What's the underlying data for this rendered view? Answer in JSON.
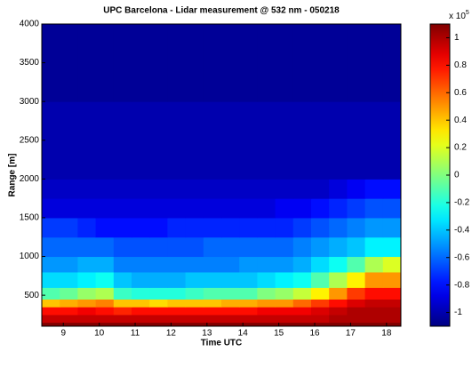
{
  "chart_data": {
    "type": "heatmap",
    "title": "UPC Barcelona - Lidar measurement @ 532 nm - 050218",
    "x_label": "Time UTC",
    "y_label": "Range [m]",
    "xlim": [
      8.4,
      18.4
    ],
    "xticks": [
      9,
      10,
      11,
      12,
      13,
      14,
      15,
      16,
      17,
      18
    ],
    "ylim": [
      100,
      4000
    ],
    "yticks": [
      500,
      1000,
      1500,
      2000,
      2500,
      3000,
      3500,
      4000
    ],
    "xbins": [
      8.4,
      8.9,
      9.4,
      9.9,
      10.4,
      10.9,
      11.4,
      11.9,
      12.4,
      12.9,
      13.4,
      13.9,
      14.4,
      14.9,
      15.4,
      15.9,
      16.4,
      16.9,
      17.4,
      17.9,
      18.4
    ],
    "ybins": [
      150,
      250,
      350,
      450,
      600,
      800,
      1000,
      1250,
      1500,
      1750,
      2000,
      3000,
      4000
    ],
    "z": [
      [
        0.95,
        0.95,
        0.95,
        0.95,
        0.95,
        0.95,
        0.95,
        0.95,
        0.95,
        0.95,
        0.95,
        0.95,
        0.95,
        0.95,
        0.95,
        0.95,
        1.0,
        1.0,
        1.0,
        1.0
      ],
      [
        0.8,
        0.8,
        0.85,
        0.8,
        0.75,
        0.8,
        0.8,
        0.8,
        0.8,
        0.8,
        0.8,
        0.8,
        0.85,
        0.85,
        0.85,
        0.9,
        0.95,
        1.0,
        1.0,
        1.0
      ],
      [
        0.4,
        0.45,
        0.5,
        0.55,
        0.4,
        0.4,
        0.35,
        0.4,
        0.4,
        0.4,
        0.45,
        0.45,
        0.5,
        0.5,
        0.6,
        0.7,
        0.8,
        0.9,
        0.95,
        0.95
      ],
      [
        -0.1,
        -0.05,
        0.05,
        0.1,
        -0.15,
        -0.2,
        -0.2,
        -0.2,
        -0.15,
        -0.1,
        -0.1,
        -0.1,
        0,
        0.05,
        0.15,
        0.3,
        0.5,
        0.7,
        0.8,
        0.8
      ],
      [
        -0.35,
        -0.35,
        -0.3,
        -0.25,
        -0.4,
        -0.45,
        -0.45,
        -0.45,
        -0.4,
        -0.4,
        -0.4,
        -0.4,
        -0.35,
        -0.3,
        -0.25,
        -0.1,
        0.1,
        0.3,
        0.5,
        0.5
      ],
      [
        -0.5,
        -0.5,
        -0.45,
        -0.45,
        -0.55,
        -0.55,
        -0.55,
        -0.55,
        -0.55,
        -0.55,
        -0.55,
        -0.5,
        -0.5,
        -0.5,
        -0.45,
        -0.35,
        -0.25,
        -0.1,
        0.1,
        0.2
      ],
      [
        -0.6,
        -0.6,
        -0.6,
        -0.6,
        -0.65,
        -0.65,
        -0.65,
        -0.65,
        -0.65,
        -0.6,
        -0.6,
        -0.6,
        -0.6,
        -0.6,
        -0.55,
        -0.5,
        -0.45,
        -0.4,
        -0.3,
        -0.3
      ],
      [
        -0.7,
        -0.7,
        -0.75,
        -0.8,
        -0.8,
        -0.8,
        -0.8,
        -0.75,
        -0.75,
        -0.75,
        -0.75,
        -0.75,
        -0.75,
        -0.75,
        -0.7,
        -0.65,
        -0.6,
        -0.55,
        -0.5,
        -0.5
      ],
      [
        -0.9,
        -0.9,
        -0.9,
        -0.9,
        -0.9,
        -0.9,
        -0.9,
        -0.9,
        -0.9,
        -0.9,
        -0.9,
        -0.9,
        -0.9,
        -0.85,
        -0.85,
        -0.8,
        -0.75,
        -0.7,
        -0.65,
        -0.65
      ],
      [
        -0.95,
        -0.95,
        -0.95,
        -0.95,
        -0.95,
        -0.95,
        -0.95,
        -0.95,
        -0.95,
        -0.95,
        -0.95,
        -0.95,
        -0.95,
        -0.95,
        -0.95,
        -0.95,
        -0.9,
        -0.85,
        -0.8,
        -0.8
      ],
      [
        -1.0,
        -1.0,
        -1.0,
        -1.0,
        -1.0,
        -1.0,
        -1.0,
        -1.0,
        -1.0,
        -1.0,
        -1.0,
        -1.0,
        -1.0,
        -1.0,
        -1.0,
        -1.0,
        -1.0,
        -1.0,
        -1.0,
        -1.0
      ],
      [
        -1.05,
        -1.05,
        -1.05,
        -1.05,
        -1.05,
        -1.05,
        -1.05,
        -1.05,
        -1.05,
        -1.05,
        -1.05,
        -1.05,
        -1.05,
        -1.05,
        -1.05,
        -1.05,
        -1.05,
        -1.05,
        -1.05,
        -1.05
      ]
    ],
    "colormap": "jet",
    "colorbar_lim": [
      -1.1,
      1.1
    ],
    "colorbar_ticks": [
      -1,
      -0.8,
      -0.6,
      -0.4,
      -0.2,
      0,
      0.2,
      0.4,
      0.6,
      0.8,
      1
    ],
    "colorbar_scale_label": "x 10",
    "colorbar_scale_power": 5
  }
}
